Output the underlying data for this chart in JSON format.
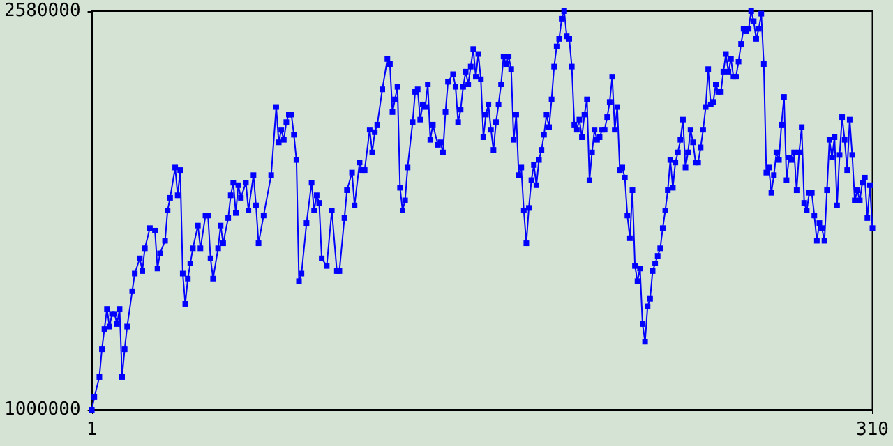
{
  "chart_data": {
    "type": "line",
    "color": "#0000ff",
    "marker": "square",
    "grid": false,
    "xlim": [
      1,
      310
    ],
    "xticks": [
      1,
      310
    ],
    "ylim": [
      1000000,
      2580000
    ],
    "yticks": [
      1000000,
      2580000
    ],
    "x": [
      1,
      2,
      4,
      5,
      6,
      7,
      8,
      9,
      10,
      11,
      12,
      13,
      14,
      15,
      17,
      18,
      20,
      21,
      22,
      24,
      26,
      27,
      28,
      30,
      31,
      32,
      34,
      35,
      36,
      37,
      38,
      39,
      40,
      41,
      43,
      44,
      46,
      47,
      48,
      49,
      51,
      52,
      53,
      55,
      56,
      57,
      58,
      59,
      60,
      62,
      63,
      65,
      66,
      67,
      69,
      72,
      74,
      75,
      76,
      77,
      78,
      79,
      80,
      81,
      82,
      83,
      84,
      86,
      88,
      89,
      90,
      91,
      92,
      94,
      96,
      98,
      99,
      101,
      102,
      104,
      105,
      107,
      108,
      109,
      111,
      112,
      113,
      114,
      116,
      118,
      119,
      120,
      121,
      122,
      123,
      124,
      125,
      126,
      128,
      129,
      130,
      131,
      132,
      133,
      134,
      135,
      136,
      138,
      139,
      140,
      141,
      142,
      144,
      145,
      146,
      147,
      148,
      149,
      150,
      151,
      152,
      153,
      154,
      155,
      156,
      157,
      158,
      159,
      160,
      161,
      162,
      163,
      164,
      165,
      166,
      167,
      168,
      169,
      170,
      171,
      172,
      173,
      174,
      175,
      176,
      177,
      178,
      179,
      180,
      181,
      182,
      183,
      184,
      185,
      186,
      187,
      188,
      189,
      190,
      191,
      192,
      193,
      194,
      195,
      196,
      197,
      198,
      199,
      200,
      201,
      202,
      203,
      204,
      205,
      206,
      207,
      208,
      209,
      210,
      211,
      212,
      213,
      214,
      215,
      216,
      217,
      218,
      219,
      220,
      221,
      222,
      223,
      224,
      225,
      226,
      227,
      228,
      229,
      230,
      231,
      232,
      233,
      234,
      235,
      236,
      237,
      238,
      239,
      240,
      241,
      242,
      243,
      244,
      245,
      246,
      247,
      248,
      249,
      250,
      251,
      252,
      253,
      254,
      255,
      256,
      257,
      258,
      259,
      260,
      261,
      262,
      263,
      264,
      265,
      266,
      267,
      268,
      269,
      270,
      271,
      272,
      273,
      274,
      275,
      276,
      277,
      278,
      279,
      280,
      281,
      282,
      283,
      284,
      285,
      286,
      287,
      288,
      289,
      290,
      291,
      292,
      293,
      294,
      295,
      296,
      297,
      298,
      299,
      300,
      301,
      302,
      303,
      304,
      305,
      306,
      307,
      308,
      309,
      310
    ],
    "values": [
      1000000,
      1050000,
      1130000,
      1240000,
      1320000,
      1400000,
      1330000,
      1380000,
      1380000,
      1340000,
      1400000,
      1130000,
      1240000,
      1330000,
      1470000,
      1540000,
      1600000,
      1550000,
      1640000,
      1720000,
      1710000,
      1560000,
      1620000,
      1670000,
      1790000,
      1840000,
      1960000,
      1850000,
      1950000,
      1540000,
      1420000,
      1520000,
      1580000,
      1640000,
      1730000,
      1640000,
      1770000,
      1770000,
      1600000,
      1520000,
      1640000,
      1730000,
      1660000,
      1760000,
      1850000,
      1900000,
      1780000,
      1890000,
      1840000,
      1900000,
      1790000,
      1930000,
      1810000,
      1660000,
      1770000,
      1930000,
      2200000,
      2060000,
      2110000,
      2070000,
      2140000,
      2170000,
      2170000,
      2090000,
      1990000,
      1510000,
      1540000,
      1740000,
      1900000,
      1790000,
      1850000,
      1820000,
      1600000,
      1570000,
      1790000,
      1550000,
      1550000,
      1760000,
      1870000,
      1940000,
      1810000,
      1980000,
      1950000,
      1950000,
      2110000,
      2020000,
      2100000,
      2130000,
      2270000,
      2390000,
      2370000,
      2180000,
      2230000,
      2280000,
      1880000,
      1790000,
      1830000,
      1960000,
      2140000,
      2260000,
      2270000,
      2150000,
      2210000,
      2200000,
      2290000,
      2070000,
      2130000,
      2050000,
      2060000,
      2020000,
      2180000,
      2300000,
      2330000,
      2280000,
      2140000,
      2190000,
      2280000,
      2340000,
      2290000,
      2360000,
      2430000,
      2320000,
      2410000,
      2310000,
      2080000,
      2170000,
      2210000,
      2110000,
      2030000,
      2140000,
      2210000,
      2290000,
      2400000,
      2370000,
      2400000,
      2350000,
      2070000,
      2170000,
      1930000,
      1960000,
      1790000,
      1660000,
      1800000,
      1910000,
      1970000,
      1890000,
      1990000,
      2030000,
      2090000,
      2170000,
      2120000,
      2230000,
      2360000,
      2440000,
      2470000,
      2550000,
      2580000,
      2480000,
      2470000,
      2360000,
      2130000,
      2110000,
      2150000,
      2080000,
      2170000,
      2230000,
      1910000,
      2020000,
      2110000,
      2070000,
      2080000,
      2110000,
      2110000,
      2160000,
      2220000,
      2320000,
      2110000,
      2200000,
      1950000,
      1960000,
      1920000,
      1770000,
      1680000,
      1870000,
      1570000,
      1510000,
      1560000,
      1340000,
      1270000,
      1410000,
      1440000,
      1550000,
      1580000,
      1610000,
      1640000,
      1720000,
      1790000,
      1870000,
      1990000,
      1880000,
      1980000,
      2020000,
      2070000,
      2150000,
      1960000,
      2020000,
      2110000,
      2060000,
      1980000,
      1980000,
      2040000,
      2110000,
      2200000,
      2350000,
      2210000,
      2220000,
      2290000,
      2260000,
      2260000,
      2340000,
      2410000,
      2340000,
      2390000,
      2320000,
      2320000,
      2380000,
      2450000,
      2510000,
      2500000,
      2510000,
      2580000,
      2540000,
      2470000,
      2510000,
      2570000,
      2370000,
      1940000,
      1960000,
      1860000,
      1930000,
      2020000,
      1990000,
      2130000,
      2240000,
      1910000,
      2000000,
      1990000,
      2020000,
      1870000,
      2020000,
      2120000,
      1820000,
      1790000,
      1860000,
      1860000,
      1770000,
      1670000,
      1740000,
      1720000,
      1670000,
      1870000,
      2070000,
      2000000,
      2080000,
      1810000,
      2010000,
      2160000,
      2070000,
      1950000,
      2150000,
      2010000,
      1830000,
      1870000,
      1830000,
      1900000,
      1920000,
      1760000,
      1890000,
      1720000
    ]
  }
}
